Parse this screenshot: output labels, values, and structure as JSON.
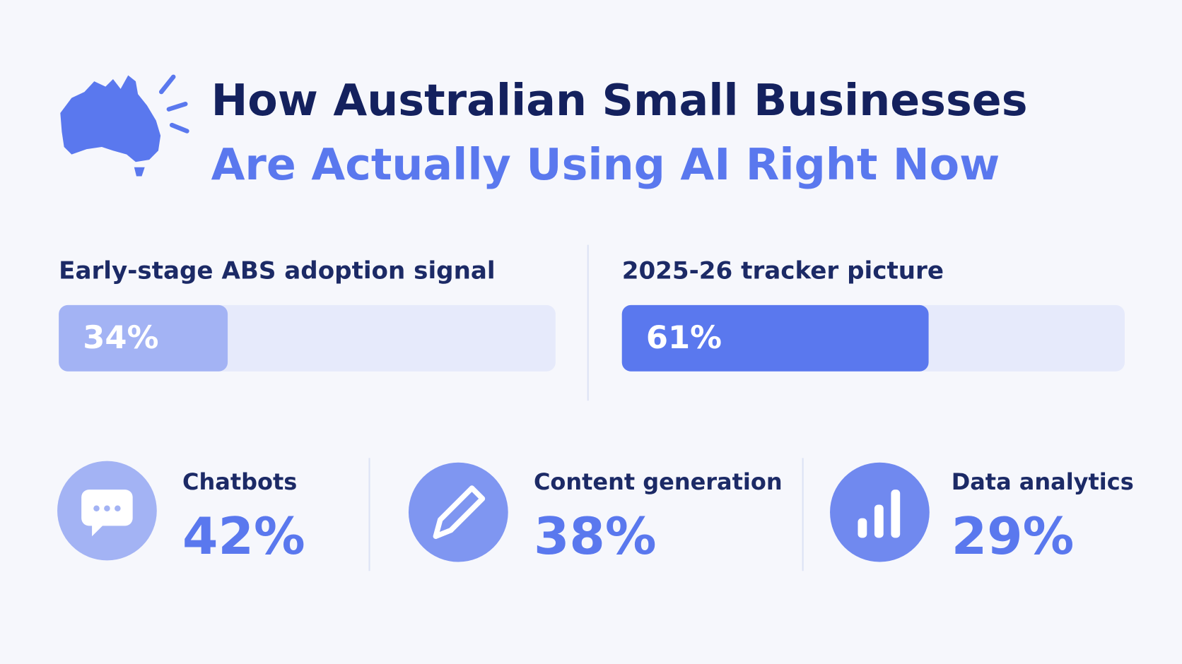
{
  "header": {
    "title_line1": "How Australian Small Businesses",
    "title_line2": "Are Actually Using AI Right Now"
  },
  "bars": {
    "xlim": [
      0,
      100
    ],
    "items": [
      {
        "label": "Early-stage ABS adoption signal",
        "value": 34,
        "value_label": "34%",
        "color": "#a3b3f4"
      },
      {
        "label": "2025-26 tracker picture",
        "value": 61,
        "value_label": "61%",
        "color": "#5a78ee"
      }
    ]
  },
  "stats": [
    {
      "label": "Chatbots",
      "value": "42%"
    },
    {
      "label": "Content generation",
      "value": "38%"
    },
    {
      "label": "Data analytics",
      "value": "29%"
    }
  ]
}
